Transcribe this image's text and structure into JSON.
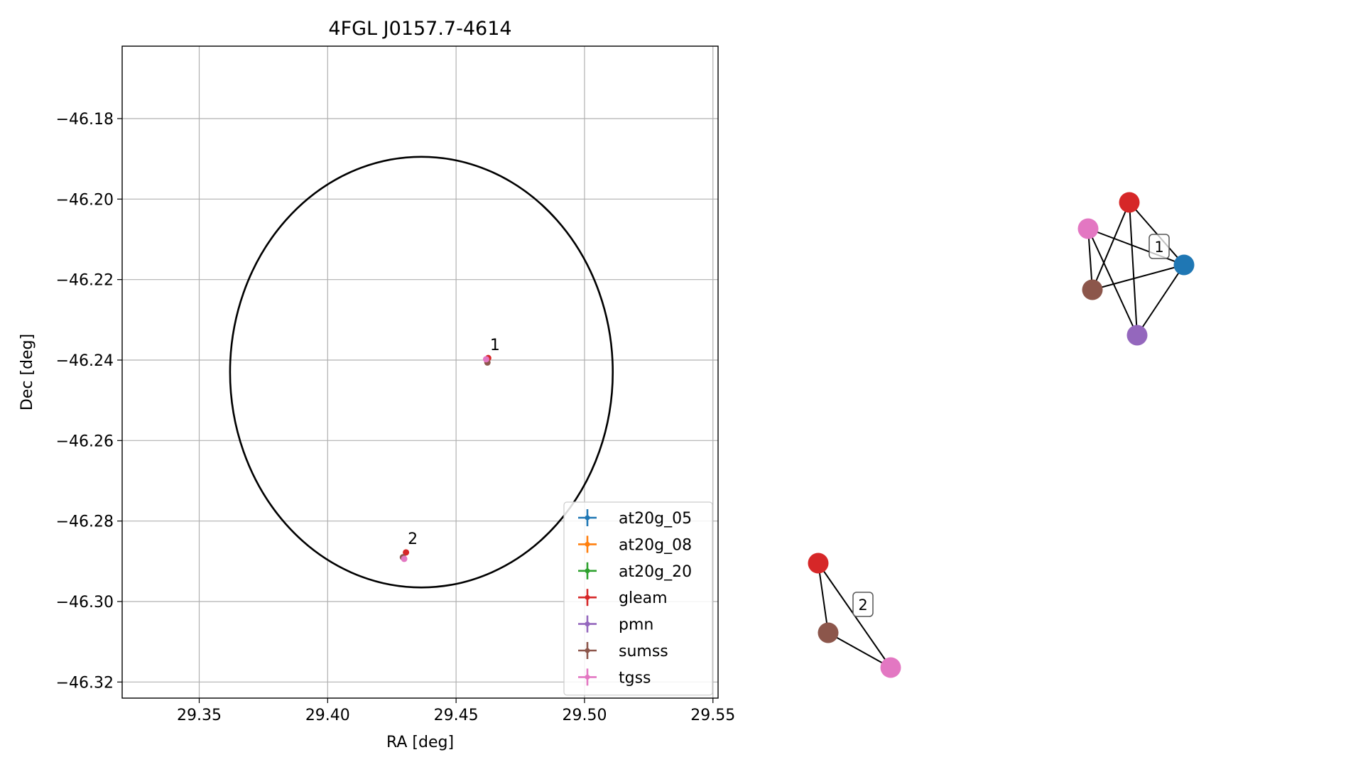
{
  "chart_data": [
    {
      "type": "scatter",
      "title": "4FGL J0157.7-4614",
      "xlabel": "RA [deg]",
      "ylabel": "Dec [deg]",
      "xlim": [
        29.32,
        29.552
      ],
      "ylim": [
        -46.324,
        -46.162
      ],
      "xticks": [
        29.35,
        29.4,
        29.45,
        29.5,
        29.55
      ],
      "xtick_labels": [
        "29.35",
        "29.40",
        "29.45",
        "29.50",
        "29.55"
      ],
      "yticks": [
        -46.18,
        -46.2,
        -46.22,
        -46.24,
        -46.26,
        -46.28,
        -46.3,
        -46.32
      ],
      "ytick_labels": [
        "−46.18",
        "−46.20",
        "−46.22",
        "−46.24",
        "−46.26",
        "−46.28",
        "−46.30",
        "−46.32"
      ],
      "grid": true,
      "legend_position": "lower-right",
      "ellipse": {
        "center_ra": 29.4365,
        "center_dec": -46.243,
        "semi_axis_ra": 0.0745,
        "semi_axis_dec": 0.0535,
        "color": "#000000"
      },
      "series": [
        {
          "name": "at20g_05",
          "color": "#1f77b4",
          "points": []
        },
        {
          "name": "at20g_08",
          "color": "#ff7f0e",
          "points": []
        },
        {
          "name": "at20g_20",
          "color": "#2ca02c",
          "points": []
        },
        {
          "name": "gleam",
          "color": "#d62728",
          "points": [
            [
              29.4625,
              -46.2395
            ],
            [
              29.4305,
              -46.2878
            ]
          ]
        },
        {
          "name": "pmn",
          "color": "#9467bd",
          "points": []
        },
        {
          "name": "sumss",
          "color": "#8c564b",
          "points": [
            [
              29.4622,
              -46.2406
            ],
            [
              29.4293,
              -46.289
            ]
          ]
        },
        {
          "name": "tgss",
          "color": "#e377c2",
          "points": [
            [
              29.4617,
              -46.2398
            ],
            [
              29.4298,
              -46.2894
            ]
          ]
        }
      ],
      "annotations": [
        {
          "text": "1",
          "ra": 29.4632,
          "dec": -46.2375
        },
        {
          "text": "2",
          "ra": 29.4312,
          "dec": -46.2857
        }
      ]
    },
    {
      "type": "graph",
      "clusters": [
        {
          "label": "1",
          "nodes": [
            {
              "catalog": "gleam",
              "color": "#d62728"
            },
            {
              "catalog": "tgss",
              "color": "#e377c2"
            },
            {
              "catalog": "at20g_05",
              "color": "#1f77b4"
            },
            {
              "catalog": "sumss",
              "color": "#8c564b"
            },
            {
              "catalog": "pmn",
              "color": "#9467bd"
            }
          ],
          "edges": [
            [
              0,
              2
            ],
            [
              0,
              3
            ],
            [
              0,
              4
            ],
            [
              1,
              2
            ],
            [
              1,
              3
            ],
            [
              1,
              4
            ],
            [
              2,
              3
            ],
            [
              2,
              4
            ]
          ]
        },
        {
          "label": "2",
          "nodes": [
            {
              "catalog": "gleam",
              "color": "#d62728"
            },
            {
              "catalog": "sumss",
              "color": "#8c564b"
            },
            {
              "catalog": "tgss",
              "color": "#e377c2"
            }
          ],
          "edges": [
            [
              0,
              1
            ],
            [
              0,
              2
            ],
            [
              1,
              2
            ]
          ]
        }
      ]
    }
  ]
}
